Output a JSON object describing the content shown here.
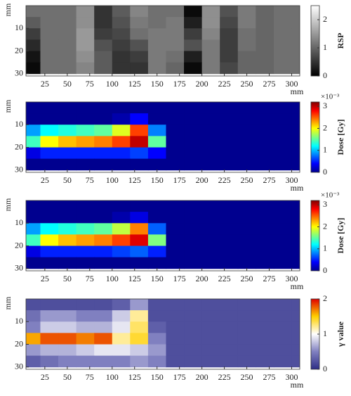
{
  "chart_data": [
    {
      "type": "heatmap",
      "xlabel": "mm",
      "ylabel": "mm",
      "colorbar_label": "RSP",
      "x": [
        10,
        30,
        50,
        70,
        90,
        110,
        130,
        150,
        170,
        190,
        210,
        230,
        250,
        270,
        290,
        310
      ],
      "y": [
        2.5,
        7.5,
        12.5,
        17.5,
        22.5,
        27.5
      ],
      "z": [
        [
          1.1,
          1.1,
          1.1,
          1.4,
          0.5,
          0.9,
          1.3,
          1.1,
          1.1,
          0.1,
          1.4,
          0.8,
          1.2,
          1.0,
          1.1,
          1.1
        ],
        [
          0.9,
          1.1,
          1.1,
          1.4,
          0.5,
          0.8,
          1.2,
          1.1,
          1.2,
          0.3,
          1.4,
          0.7,
          1.2,
          1.0,
          1.1,
          1.1
        ],
        [
          0.6,
          1.1,
          1.1,
          1.5,
          0.6,
          0.7,
          1.1,
          1.2,
          1.2,
          0.6,
          1.3,
          0.6,
          1.1,
          1.0,
          1.1,
          1.1
        ],
        [
          0.4,
          1.1,
          1.1,
          1.5,
          0.8,
          0.6,
          0.8,
          1.2,
          1.2,
          0.8,
          1.2,
          0.6,
          1.1,
          1.0,
          1.1,
          1.1
        ],
        [
          0.2,
          1.1,
          1.1,
          1.4,
          0.9,
          0.5,
          0.6,
          1.2,
          1.1,
          0.3,
          1.2,
          0.6,
          1.0,
          1.0,
          1.1,
          1.1
        ],
        [
          0.1,
          1.1,
          1.1,
          1.3,
          0.9,
          0.5,
          0.5,
          1.2,
          1.0,
          0.1,
          1.2,
          0.7,
          1.0,
          1.0,
          1.1,
          1.1
        ]
      ],
      "colormap": [
        "#000000",
        "#ffffff"
      ],
      "clim": [
        0,
        2.5
      ],
      "colorbar_ticks": [
        0,
        1,
        2
      ],
      "xlim": [
        4,
        309
      ],
      "ylim": [
        0,
        31
      ],
      "xticks": [
        25,
        50,
        75,
        100,
        125,
        150,
        175,
        200,
        225,
        250,
        275,
        300
      ],
      "yticks": [
        10,
        20,
        30
      ]
    },
    {
      "type": "heatmap",
      "xlabel": "mm",
      "ylabel": "mm",
      "colorbar_label": "Dose [Gy]",
      "colorbar_exponent": "×10⁻³",
      "x": [
        10,
        30,
        50,
        70,
        90,
        110,
        130,
        150,
        170,
        190,
        210,
        230,
        250,
        270,
        290,
        310
      ],
      "y": [
        2.5,
        7.5,
        12.5,
        17.5,
        22.5,
        27.5
      ],
      "z": [
        [
          0,
          0,
          0,
          0,
          0,
          0,
          0,
          0,
          0,
          0,
          0,
          0,
          0,
          0,
          0,
          0
        ],
        [
          0,
          0,
          0,
          0,
          0,
          0.1,
          0.4,
          0,
          0,
          0,
          0,
          0,
          0,
          0,
          0,
          0
        ],
        [
          0.9,
          1.2,
          1.3,
          1.4,
          1.5,
          1.9,
          2.6,
          0.8,
          0,
          0,
          0,
          0,
          0,
          0,
          0,
          0
        ],
        [
          1.4,
          2.0,
          2.2,
          2.3,
          2.4,
          2.6,
          3.0,
          1.5,
          0,
          0,
          0,
          0,
          0,
          0,
          0,
          0
        ],
        [
          0.3,
          0.5,
          0.5,
          0.5,
          0.5,
          0.5,
          0.6,
          0.4,
          0,
          0,
          0,
          0,
          0,
          0,
          0,
          0
        ],
        [
          0,
          0,
          0,
          0,
          0,
          0,
          0,
          0,
          0,
          0,
          0,
          0,
          0,
          0,
          0,
          0
        ]
      ],
      "colormap": [
        "#00008f",
        "#0000ff",
        "#0080ff",
        "#00ffff",
        "#80ff80",
        "#ffff00",
        "#ff8000",
        "#ff0000",
        "#800000"
      ],
      "clim": [
        0,
        3.2
      ],
      "colorbar_ticks": [
        0,
        1,
        2,
        3
      ],
      "xlim": [
        4,
        309
      ],
      "ylim": [
        0,
        31
      ],
      "xticks": [
        25,
        50,
        75,
        100,
        125,
        150,
        175,
        200,
        225,
        250,
        275,
        300
      ],
      "yticks": [
        10,
        20,
        30
      ]
    },
    {
      "type": "heatmap",
      "xlabel": "mm",
      "ylabel": "mm",
      "colorbar_label": "Dose [Gy]",
      "colorbar_exponent": "×10⁻³",
      "x": [
        10,
        30,
        50,
        70,
        90,
        110,
        130,
        150,
        170,
        190,
        210,
        230,
        250,
        270,
        290,
        310
      ],
      "y": [
        2.5,
        7.5,
        12.5,
        17.5,
        22.5,
        27.5
      ],
      "z": [
        [
          0,
          0,
          0,
          0,
          0,
          0,
          0,
          0,
          0,
          0,
          0,
          0,
          0,
          0,
          0,
          0
        ],
        [
          0,
          0,
          0,
          0,
          0,
          0.1,
          0.3,
          0,
          0,
          0,
          0,
          0,
          0,
          0,
          0,
          0
        ],
        [
          0.9,
          1.2,
          1.3,
          1.4,
          1.5,
          1.8,
          2.4,
          0.7,
          0,
          0,
          0,
          0,
          0,
          0,
          0,
          0
        ],
        [
          1.4,
          2.0,
          2.2,
          2.3,
          2.4,
          2.6,
          2.9,
          1.6,
          0,
          0,
          0,
          0,
          0,
          0,
          0,
          0
        ],
        [
          0.3,
          0.5,
          0.5,
          0.5,
          0.5,
          0.6,
          0.7,
          0.5,
          0,
          0,
          0,
          0,
          0,
          0,
          0,
          0
        ],
        [
          0,
          0,
          0,
          0,
          0,
          0,
          0,
          0,
          0,
          0,
          0,
          0,
          0,
          0,
          0,
          0
        ]
      ],
      "colormap": [
        "#00008f",
        "#0000ff",
        "#0080ff",
        "#00ffff",
        "#80ff80",
        "#ffff00",
        "#ff8000",
        "#ff0000",
        "#800000"
      ],
      "clim": [
        0,
        3.2
      ],
      "colorbar_ticks": [
        0,
        1,
        2,
        3
      ],
      "xlim": [
        4,
        309
      ],
      "ylim": [
        0,
        31
      ],
      "xticks": [
        25,
        50,
        75,
        100,
        125,
        150,
        175,
        200,
        225,
        250,
        275,
        300
      ],
      "yticks": [
        10,
        20,
        30
      ]
    },
    {
      "type": "heatmap",
      "xlabel": "mm",
      "ylabel": "mm",
      "colorbar_label": "γ value",
      "x": [
        10,
        30,
        50,
        70,
        90,
        110,
        130,
        150,
        170,
        190,
        210,
        230,
        250,
        270,
        290,
        310
      ],
      "y": [
        2.5,
        7.5,
        12.5,
        17.5,
        22.5,
        27.5
      ],
      "z": [
        [
          0.2,
          0.2,
          0.2,
          0.2,
          0.2,
          0.3,
          0.6,
          0.2,
          0.2,
          0.2,
          0.2,
          0.2,
          0.2,
          0.2,
          0.2,
          0.2
        ],
        [
          0.4,
          0.6,
          0.6,
          0.5,
          0.5,
          0.8,
          1.2,
          0.2,
          0.2,
          0.2,
          0.2,
          0.2,
          0.2,
          0.2,
          0.2,
          0.2
        ],
        [
          0.5,
          0.8,
          0.8,
          0.7,
          0.7,
          0.9,
          1.3,
          0.3,
          0.2,
          0.2,
          0.2,
          0.2,
          0.2,
          0.2,
          0.2,
          0.2
        ],
        [
          1.6,
          1.8,
          1.8,
          1.7,
          1.8,
          1.2,
          1.4,
          0.5,
          0.2,
          0.2,
          0.2,
          0.2,
          0.2,
          0.2,
          0.2,
          0.2
        ],
        [
          0.6,
          0.7,
          0.7,
          0.8,
          0.9,
          0.9,
          0.8,
          0.6,
          0.2,
          0.2,
          0.2,
          0.2,
          0.2,
          0.2,
          0.2,
          0.2
        ],
        [
          0.3,
          0.4,
          0.5,
          0.5,
          0.5,
          0.5,
          0.6,
          0.5,
          0.2,
          0.2,
          0.2,
          0.2,
          0.2,
          0.2,
          0.2,
          0.2
        ]
      ],
      "colormap": [
        "#2e2e86",
        "#8080c0",
        "#ffffff",
        "#ffd000",
        "#e00000"
      ],
      "clim": [
        0,
        2
      ],
      "colorbar_ticks": [
        0,
        1,
        2
      ],
      "xlim": [
        4,
        309
      ],
      "ylim": [
        0,
        31
      ],
      "xticks": [
        25,
        50,
        75,
        100,
        125,
        150,
        175,
        200,
        225,
        250,
        275,
        300
      ],
      "yticks": [
        10,
        20,
        30
      ]
    }
  ]
}
